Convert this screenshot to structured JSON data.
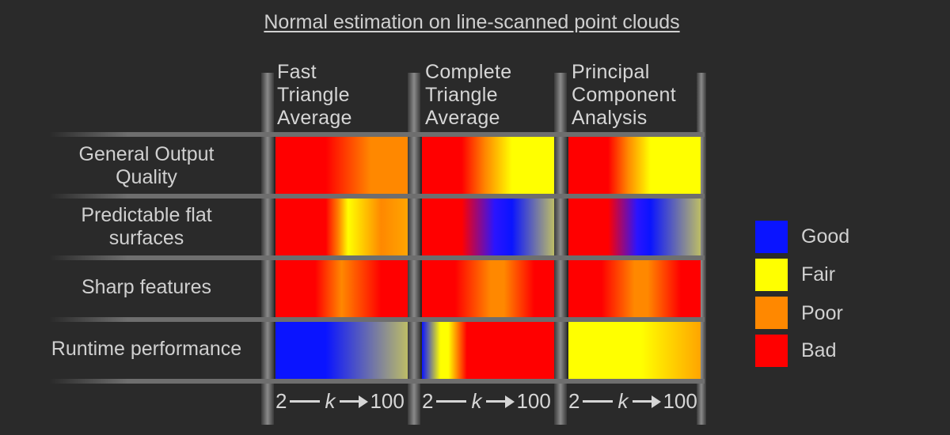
{
  "title": "Normal estimation on line-scanned point clouds",
  "columns": [
    {
      "label": "Fast\nTriangle\nAverage"
    },
    {
      "label": "Complete\nTriangle\nAverage"
    },
    {
      "label": "Principal\nComponent\nAnalysis"
    }
  ],
  "rows": [
    {
      "label": "General Output\nQuality"
    },
    {
      "label": "Predictable flat\nsurfaces"
    },
    {
      "label": "Sharp features"
    },
    {
      "label": "Runtime performance"
    }
  ],
  "axis": {
    "start": "2",
    "variable": "k",
    "end": "100"
  },
  "legend": [
    {
      "label": "Good",
      "color": "#0a14ff"
    },
    {
      "label": "Fair",
      "color": "#ffff00"
    },
    {
      "label": "Poor",
      "color": "#ff8800"
    },
    {
      "label": "Bad",
      "color": "#ff0000"
    }
  ],
  "colors": {
    "red": "#ff0000",
    "orange": "#ff8800",
    "yellow": "#ffff00",
    "blue": "#0a14ff",
    "olive": "#bdbd66"
  }
}
